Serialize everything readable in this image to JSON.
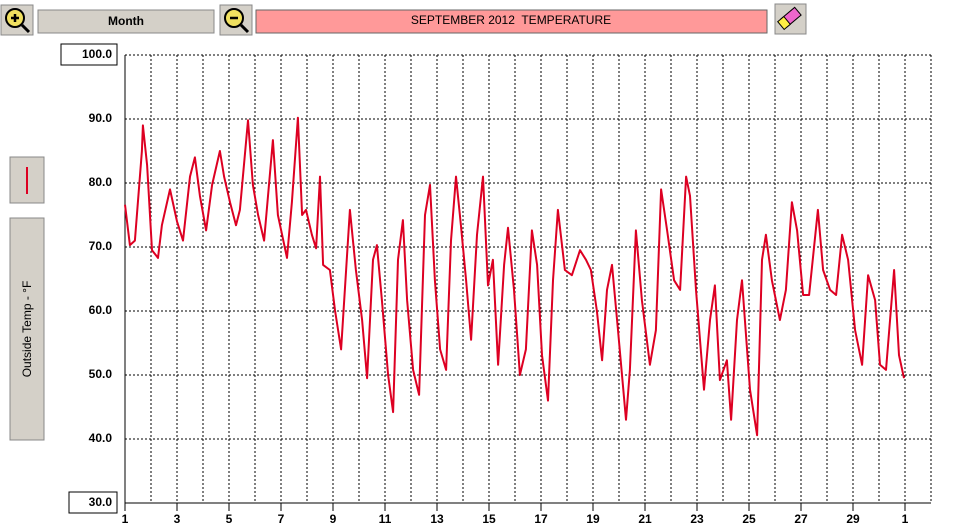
{
  "toolbar": {
    "period": "Month"
  },
  "chart_data": {
    "type": "line",
    "title": "SEPTEMBER 2012  TEMPERATURE",
    "x": [
      1.0,
      1.19,
      1.38,
      1.65,
      1.69,
      1.85,
      2.04,
      2.27,
      2.42,
      2.73,
      3.0,
      3.23,
      3.5,
      3.69,
      3.88,
      4.12,
      4.35,
      4.65,
      4.81,
      5.04,
      5.27,
      5.42,
      5.73,
      5.92,
      6.12,
      6.35,
      6.69,
      6.88,
      7.23,
      7.42,
      7.65,
      7.81,
      7.96,
      8.19,
      8.35,
      8.5,
      8.62,
      8.88,
      9.08,
      9.31,
      9.65,
      9.88,
      10.12,
      10.31,
      10.54,
      10.69,
      10.88,
      11.12,
      11.31,
      11.5,
      11.69,
      11.85,
      12.08,
      12.31,
      12.54,
      12.73,
      12.92,
      13.12,
      13.35,
      13.54,
      13.73,
      13.92,
      14.12,
      14.31,
      14.54,
      14.77,
      14.96,
      15.15,
      15.35,
      15.58,
      15.73,
      15.96,
      16.19,
      16.42,
      16.65,
      16.85,
      17.04,
      17.27,
      17.46,
      17.65,
      17.92,
      18.19,
      18.5,
      18.73,
      18.92,
      19.15,
      19.35,
      19.54,
      19.73,
      19.96,
      20.27,
      20.42,
      20.65,
      20.88,
      21.19,
      21.42,
      21.62,
      21.85,
      22.12,
      22.35,
      22.58,
      22.73,
      22.96,
      23.27,
      23.5,
      23.69,
      23.88,
      24.15,
      24.31,
      24.54,
      24.73,
      25.04,
      25.31,
      25.5,
      25.65,
      25.88,
      26.19,
      26.42,
      26.65,
      26.85,
      27.08,
      27.31,
      27.65,
      27.85,
      28.12,
      28.35,
      28.58,
      28.81,
      29.08,
      29.35,
      29.58,
      29.85,
      30.04,
      30.27,
      30.58,
      30.77,
      30.96
    ],
    "series": [
      {
        "name": "Outside Temp - °F",
        "color": "#dd0022",
        "values": [
          76.6,
          70.3,
          71,
          85,
          89,
          82.8,
          69.5,
          68.3,
          73.4,
          79,
          74,
          71,
          81,
          84,
          78,
          72.6,
          79.7,
          85,
          81,
          77,
          73.4,
          75.8,
          89.8,
          79.7,
          75,
          71,
          86.7,
          75,
          68.3,
          77,
          90.2,
          75,
          75.8,
          71.9,
          69.8,
          81,
          67.2,
          66.4,
          60,
          54,
          75.8,
          66.4,
          58.6,
          49.5,
          68,
          70.3,
          61.7,
          50,
          44.2,
          68,
          74.2,
          61.7,
          50.8,
          46.9,
          75,
          79.7,
          64.8,
          54,
          50.8,
          71,
          81,
          73.4,
          64.8,
          55.5,
          71.9,
          81,
          64,
          68,
          51.6,
          67.2,
          73,
          63.3,
          50,
          54,
          72.6,
          67.2,
          53.1,
          46,
          64.8,
          75.8,
          66.4,
          65.6,
          69.5,
          68,
          66.4,
          60,
          52.3,
          63.3,
          67.2,
          57,
          43,
          50.8,
          72.6,
          61.7,
          51.6,
          57,
          79,
          72.6,
          64.8,
          63.3,
          81,
          78,
          63.3,
          47.7,
          58.6,
          64,
          49.2,
          52.3,
          43,
          58.6,
          64.8,
          47.7,
          40.6,
          68,
          71.9,
          64.8,
          58.6,
          63.3,
          77,
          72.6,
          62.5,
          62.5,
          75.8,
          66.4,
          63.3,
          62.5,
          71.9,
          68,
          57,
          51.6,
          65.6,
          61.7,
          51.6,
          50.8,
          66.4,
          53.1,
          49.5
        ]
      }
    ],
    "xlim": [
      1,
      32
    ],
    "xticks": [
      1,
      3,
      5,
      7,
      9,
      11,
      13,
      15,
      17,
      19,
      21,
      23,
      25,
      27,
      29,
      {
        "value": 31,
        "label": "1"
      }
    ],
    "xminorticks": [
      2,
      4,
      6,
      8,
      10,
      12,
      14,
      16,
      18,
      20,
      22,
      24,
      26,
      28,
      30,
      32
    ],
    "ylim": [
      30,
      100
    ],
    "yticks": [
      {
        "value": 30,
        "label": "30.0"
      },
      {
        "value": 40,
        "label": "40.0"
      },
      {
        "value": 50,
        "label": "50.0"
      },
      {
        "value": 60,
        "label": "60.0"
      },
      {
        "value": 70,
        "label": "70.0"
      },
      {
        "value": 80,
        "label": "80.0"
      },
      {
        "value": 90,
        "label": "90.0"
      },
      {
        "value": 100,
        "label": "100.0"
      }
    ],
    "grid": true
  }
}
